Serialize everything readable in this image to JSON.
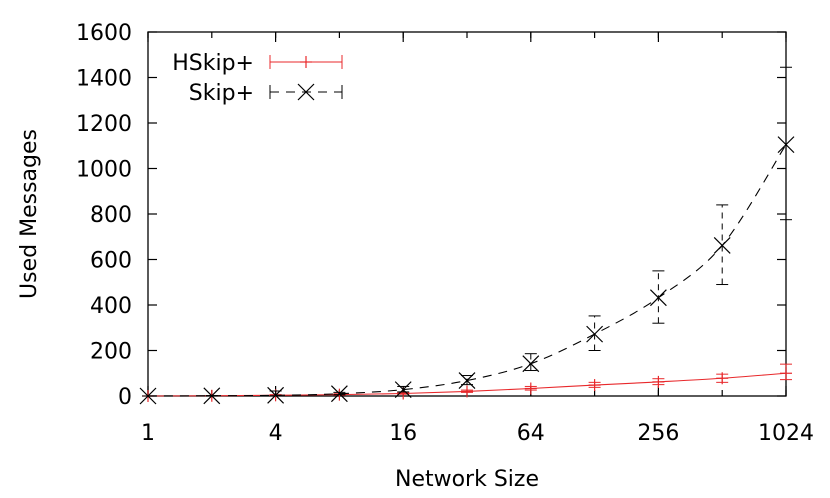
{
  "chart_data": {
    "type": "line",
    "xlabel": "Network Size",
    "ylabel": "Used Messages",
    "xscale": "log2",
    "xlim": [
      1,
      1024
    ],
    "ylim": [
      0,
      1600
    ],
    "xticks": [
      1,
      4,
      16,
      64,
      256,
      1024
    ],
    "xtick_labels": [
      "1",
      "4",
      "16",
      "64",
      "256",
      "1024"
    ],
    "yticks": [
      0,
      200,
      400,
      600,
      800,
      1000,
      1200,
      1400,
      1600
    ],
    "ytick_labels": [
      "0",
      "200",
      "400",
      "600",
      "800",
      "1000",
      "1200",
      "1400",
      "1600"
    ],
    "grid": false,
    "legend": "top-left",
    "x": [
      1,
      2,
      4,
      8,
      16,
      32,
      64,
      128,
      256,
      512,
      1024
    ],
    "series": [
      {
        "name": "HSkip+",
        "color": "#e8282b",
        "style": "solid",
        "marker": "plus",
        "values": [
          0,
          1,
          3,
          6,
          11,
          20,
          33,
          48,
          62,
          78,
          100
        ],
        "err_low": [
          0,
          0,
          2,
          4,
          8,
          16,
          26,
          38,
          50,
          60,
          72
        ],
        "err_high": [
          0,
          2,
          6,
          10,
          15,
          26,
          42,
          60,
          76,
          96,
          140
        ]
      },
      {
        "name": "Skip+",
        "color": "#000000",
        "style": "dashed",
        "marker": "cross",
        "values": [
          0,
          1,
          3,
          10,
          28,
          68,
          142,
          272,
          432,
          662,
          1105
        ],
        "err_low": [
          0,
          0,
          1,
          6,
          18,
          50,
          112,
          200,
          320,
          490,
          775
        ],
        "err_high": [
          0,
          2,
          22,
          16,
          42,
          90,
          186,
          352,
          550,
          840,
          1445
        ]
      }
    ]
  }
}
